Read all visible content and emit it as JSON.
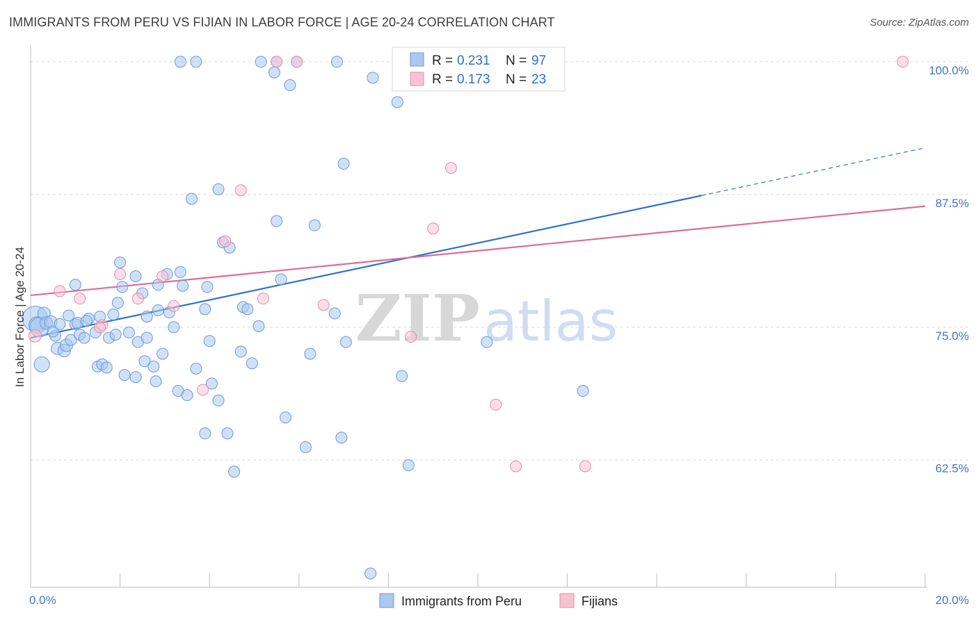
{
  "title": "IMMIGRANTS FROM PERU VS FIJIAN IN LABOR FORCE | AGE 20-24 CORRELATION CHART",
  "source": "Source: ZipAtlas.com",
  "colors": {
    "peru_fill": "#aac8f0",
    "peru_stroke": "#6a9ad8",
    "peru_line": "#2f6fd0",
    "fiji_fill": "#f7c3d3",
    "fiji_stroke": "#e88aa8",
    "fiji_line": "#e06a95",
    "tick": "#3f74c6",
    "grid": "#d8d8d8"
  },
  "legend": {
    "rows": [
      {
        "r_label": "R =",
        "r_value": "0.231",
        "n_label": "N =",
        "n_value": "97"
      },
      {
        "r_label": "R =",
        "r_value": "0.173",
        "n_label": "N =",
        "n_value": "23"
      }
    ]
  },
  "watermark": {
    "zip": "ZIP",
    "atlas": "atlas"
  },
  "chart_data": {
    "type": "scatter",
    "xlabel": "",
    "ylabel": "In Labor Force | Age 20-24",
    "xlim": [
      0,
      20
    ],
    "ylim": [
      50.5,
      101.5
    ],
    "x_ticks": [
      {
        "value": 0,
        "label": "0.0%"
      },
      {
        "value": 20,
        "label": "20.0%"
      }
    ],
    "y_ticks": [
      {
        "value": 62.5,
        "label": "62.5%"
      },
      {
        "value": 75.0,
        "label": "75.0%"
      },
      {
        "value": 87.5,
        "label": "87.5%"
      },
      {
        "value": 100.0,
        "label": "100.0%"
      }
    ],
    "grid": true,
    "legend_position": "top-center",
    "series": [
      {
        "name": "Immigrants from Peru",
        "points": [
          [
            0.1,
            75.8,
            18
          ],
          [
            0.15,
            75.2,
            12
          ],
          [
            0.2,
            75.0,
            14
          ],
          [
            0.25,
            71.5,
            11
          ],
          [
            0.3,
            76.3,
            9
          ],
          [
            0.35,
            75.4,
            9
          ],
          [
            0.45,
            75.5,
            9
          ],
          [
            0.6,
            73.0,
            9
          ],
          [
            0.75,
            72.8,
            9
          ],
          [
            0.8,
            73.3,
            9
          ],
          [
            0.55,
            74.2,
            8
          ],
          [
            0.9,
            73.8,
            8
          ],
          [
            1.0,
            75.3,
            8
          ],
          [
            1.05,
            75.4,
            8
          ],
          [
            1.1,
            74.3,
            8
          ],
          [
            1.0,
            79.0,
            8
          ],
          [
            1.3,
            75.8,
            8
          ],
          [
            1.55,
            76.0,
            8
          ],
          [
            1.75,
            74.0,
            8
          ],
          [
            1.85,
            76.2,
            8
          ],
          [
            1.5,
            71.3,
            8
          ],
          [
            1.6,
            71.5,
            8
          ],
          [
            1.7,
            71.2,
            8
          ],
          [
            2.1,
            70.5,
            8
          ],
          [
            2.35,
            70.3,
            8
          ],
          [
            1.9,
            74.3,
            8
          ],
          [
            2.2,
            74.5,
            8
          ],
          [
            2.4,
            73.6,
            8
          ],
          [
            2.6,
            74.0,
            8
          ],
          [
            2.55,
            71.8,
            8
          ],
          [
            1.95,
            77.3,
            8
          ],
          [
            2.35,
            79.8,
            8
          ],
          [
            2.5,
            78.2,
            8
          ],
          [
            2.0,
            81.1,
            8
          ],
          [
            2.85,
            79.0,
            8
          ],
          [
            3.05,
            80.0,
            8
          ],
          [
            3.35,
            80.2,
            8
          ],
          [
            3.4,
            78.9,
            8
          ],
          [
            2.85,
            76.6,
            8
          ],
          [
            3.1,
            76.4,
            8
          ],
          [
            3.2,
            75.0,
            8
          ],
          [
            2.95,
            72.5,
            8
          ],
          [
            2.75,
            71.3,
            8
          ],
          [
            2.8,
            69.9,
            8
          ],
          [
            3.7,
            71.1,
            8
          ],
          [
            3.3,
            69.0,
            8
          ],
          [
            3.5,
            68.6,
            8
          ],
          [
            4.05,
            69.7,
            8
          ],
          [
            4.2,
            68.1,
            8
          ],
          [
            4.0,
            73.7,
            8
          ],
          [
            3.95,
            78.8,
            8
          ],
          [
            3.9,
            76.7,
            8
          ],
          [
            4.3,
            83.0,
            8
          ],
          [
            4.45,
            82.5,
            8
          ],
          [
            4.75,
            76.9,
            8
          ],
          [
            4.85,
            76.7,
            8
          ],
          [
            5.1,
            75.1,
            8
          ],
          [
            4.7,
            72.7,
            8
          ],
          [
            4.95,
            71.6,
            8
          ],
          [
            3.6,
            87.1,
            8
          ],
          [
            4.2,
            88.0,
            8
          ],
          [
            5.5,
            85.0,
            8
          ],
          [
            5.6,
            79.5,
            8
          ],
          [
            6.35,
            84.6,
            8
          ],
          [
            6.25,
            72.5,
            8
          ],
          [
            6.8,
            76.3,
            8
          ],
          [
            7.05,
            73.6,
            8
          ],
          [
            7.0,
            90.4,
            8
          ],
          [
            5.7,
            66.5,
            8
          ],
          [
            6.15,
            63.7,
            8
          ],
          [
            6.95,
            64.6,
            8
          ],
          [
            3.9,
            65.0,
            8
          ],
          [
            4.4,
            65.0,
            8
          ],
          [
            4.55,
            61.4,
            8
          ],
          [
            8.3,
            70.4,
            8
          ],
          [
            8.2,
            96.2,
            8
          ],
          [
            7.65,
            98.5,
            8
          ],
          [
            5.45,
            99.0,
            8
          ],
          [
            5.8,
            97.8,
            8
          ],
          [
            3.35,
            100.0,
            8
          ],
          [
            3.7,
            100.0,
            8
          ],
          [
            5.15,
            100.0,
            8
          ],
          [
            5.5,
            100.0,
            8
          ],
          [
            5.95,
            100.0,
            8
          ],
          [
            6.85,
            100.0,
            8
          ],
          [
            8.45,
            62.0,
            8
          ],
          [
            10.2,
            73.6,
            8
          ],
          [
            12.35,
            69.0,
            8
          ],
          [
            7.6,
            51.8,
            8
          ],
          [
            0.85,
            76.1,
            8
          ],
          [
            0.5,
            74.6,
            8
          ],
          [
            0.65,
            75.3,
            8
          ],
          [
            1.2,
            74.0,
            8
          ],
          [
            1.45,
            74.5,
            8
          ],
          [
            1.25,
            75.6,
            8
          ],
          [
            2.05,
            78.8,
            8
          ],
          [
            2.6,
            76.0,
            8
          ]
        ]
      },
      {
        "name": "Fijians",
        "points": [
          [
            0.1,
            74.2,
            9
          ],
          [
            0.65,
            78.4,
            8
          ],
          [
            1.1,
            77.7,
            8
          ],
          [
            1.6,
            75.2,
            8
          ],
          [
            2.0,
            80.0,
            8
          ],
          [
            2.4,
            77.7,
            8
          ],
          [
            2.95,
            79.8,
            8
          ],
          [
            3.2,
            77.0,
            8
          ],
          [
            3.85,
            69.1,
            8
          ],
          [
            4.35,
            83.1,
            8
          ],
          [
            4.7,
            87.9,
            8
          ],
          [
            5.2,
            77.7,
            8
          ],
          [
            5.5,
            100.0,
            8
          ],
          [
            5.95,
            100.0,
            8
          ],
          [
            6.55,
            77.1,
            8
          ],
          [
            8.5,
            74.1,
            8
          ],
          [
            9.0,
            84.3,
            8
          ],
          [
            9.4,
            90.0,
            8
          ],
          [
            10.4,
            67.7,
            8
          ],
          [
            10.85,
            61.9,
            8
          ],
          [
            12.4,
            61.9,
            8
          ],
          [
            19.5,
            100.0,
            8
          ],
          [
            1.55,
            75.0,
            8
          ]
        ]
      }
    ],
    "trend_lines": [
      {
        "series": "Immigrants from Peru",
        "x0": 0,
        "y0": 74.0,
        "x1": 15.0,
        "y1": 87.4,
        "dash_x1": 20.0,
        "dash_y1": 91.9
      },
      {
        "series": "Fijians",
        "x0": 0,
        "y0": 78.0,
        "x1": 20.0,
        "y1": 86.4
      }
    ]
  }
}
